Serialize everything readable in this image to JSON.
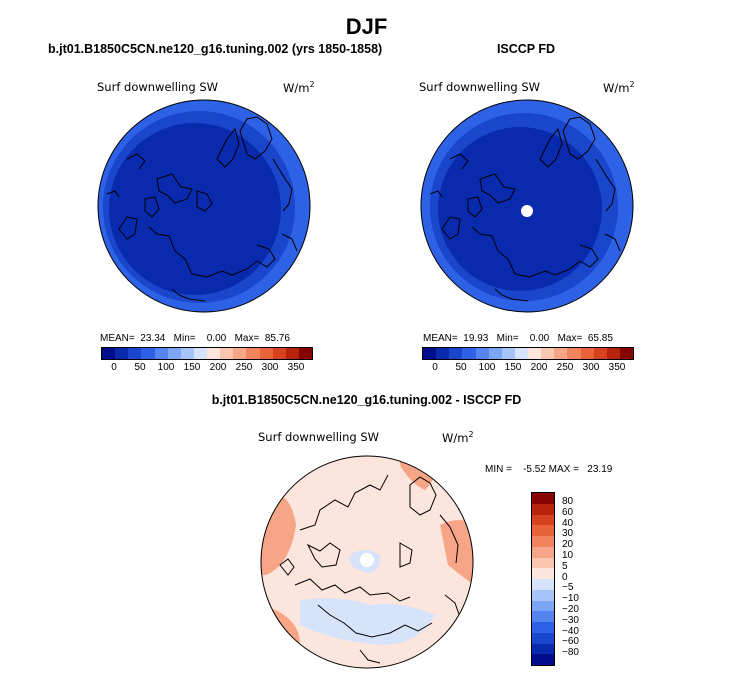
{
  "title": "DJF",
  "panels": [
    {
      "case": "b.jt01.B1850C5CN.ne120_g16.tuning.002 (yrs 1850-1858)",
      "variable": "Surf downwelling SW",
      "units": "W/m",
      "units_sup": "2",
      "mean_label": "MEAN=",
      "mean": "23.34",
      "min_label": "Min=",
      "min": "0.00",
      "max_label": "Max=",
      "max": "85.76"
    },
    {
      "case": "ISCCP FD",
      "variable": "Surf downwelling SW",
      "units": "W/m",
      "units_sup": "2",
      "mean_label": "MEAN=",
      "mean": "19.93",
      "min_label": "Min=",
      "min": "0.00",
      "max_label": "Max=",
      "max": "65.85"
    }
  ],
  "diff_panel": {
    "case": "b.jt01.B1850C5CN.ne120_g16.tuning.002 - ISCCP FD",
    "variable": "Surf downwelling SW",
    "units": "W/m",
    "units_sup": "2",
    "min_label": "MIN =",
    "min": "-5.52",
    "max_label": "MAX =",
    "max": "23.19"
  },
  "colorbar_top": {
    "colors": [
      "#000e8c",
      "#0a2aad",
      "#1a46cc",
      "#2e62e6",
      "#5485ee",
      "#7ba6f4",
      "#a7c4f8",
      "#d6e4fb",
      "#fbe5dc",
      "#fac6b0",
      "#f6a586",
      "#f1845d",
      "#e8633a",
      "#d6421f",
      "#b8230c",
      "#850300"
    ],
    "ticks": [
      "0",
      "50",
      "100",
      "150",
      "200",
      "250",
      "300",
      "350"
    ]
  },
  "colorbar_diff": {
    "colors": [
      "#850300",
      "#b8230c",
      "#d6421f",
      "#e8633a",
      "#f1845d",
      "#f6a586",
      "#fac6b0",
      "#fbe5dc",
      "#d6e4fb",
      "#a7c4f8",
      "#7ba6f4",
      "#5485ee",
      "#2e62e6",
      "#1a46cc",
      "#0a2aad",
      "#000e8c"
    ],
    "ticks": [
      "80",
      "60",
      "40",
      "30",
      "20",
      "10",
      "5",
      "0",
      "−5",
      "−10",
      "−20",
      "−30",
      "−40",
      "−60",
      "−80"
    ]
  },
  "map_colors": {
    "outer_band": "#2e62e6",
    "mid_band": "#1a46cc",
    "inner": "#0a2aad",
    "diff_base": "#fbe5dc",
    "diff_warm": "#f6a586",
    "diff_cool": "#d6e4fb",
    "missing": "#ffffff"
  }
}
